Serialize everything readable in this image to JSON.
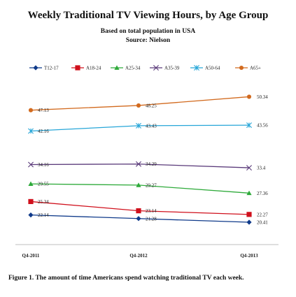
{
  "chart_data": {
    "type": "line",
    "title": "Weekly Traditional TV Viewing Hours, by Age Group",
    "subtitle": "Based on total population in USA",
    "source": "Source: Nielson",
    "x": [
      "Q4-2011",
      "Q4-2012",
      "Q4-2013"
    ],
    "legend_position": "top",
    "grid": false,
    "series": [
      {
        "name": "T12-17",
        "values": [
          22.14,
          21.28,
          20.41
        ],
        "value_labels": [
          "22.14",
          "21.28",
          "20.41"
        ],
        "color": "#0f3a8a",
        "marker": "diamond"
      },
      {
        "name": "A18-24",
        "values": [
          25.34,
          23.14,
          22.27
        ],
        "value_labels": [
          "25.34",
          "23.14",
          "22.27"
        ],
        "color": "#d0101c",
        "marker": "square"
      },
      {
        "name": "A25-34",
        "values": [
          29.55,
          29.27,
          27.36
        ],
        "value_labels": [
          "29.55",
          "29.27",
          "27.36"
        ],
        "color": "#2eaa3a",
        "marker": "triangle"
      },
      {
        "name": "A35-39",
        "values": [
          34.16,
          34.29,
          33.4
        ],
        "value_labels": [
          "34.16",
          "34.29",
          "33.4"
        ],
        "color": "#5a3a7a",
        "marker": "x"
      },
      {
        "name": "A50-64",
        "values": [
          42.16,
          43.43,
          43.56
        ],
        "value_labels": [
          "42.16",
          "43.43",
          "43.56"
        ],
        "color": "#27a6d8",
        "marker": "star"
      },
      {
        "name": "A65+",
        "values": [
          47.13,
          48.25,
          50.34
        ],
        "value_labels": [
          "47.13",
          "48.25",
          "50.34"
        ],
        "color": "#d26a1e",
        "marker": "circle"
      }
    ]
  },
  "caption": "Figure 1. The amount of time Americans spend watching traditional TV each week."
}
